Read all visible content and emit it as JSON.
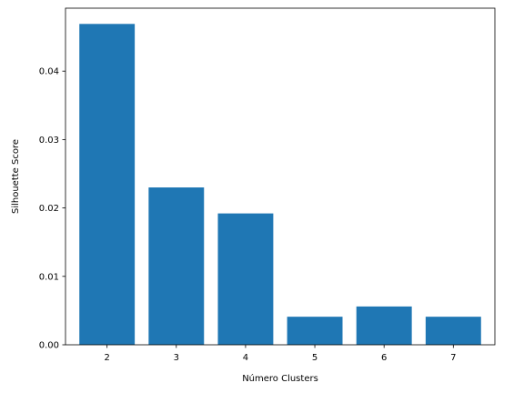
{
  "chart_data": {
    "type": "bar",
    "categories": [
      "2",
      "3",
      "4",
      "5",
      "6",
      "7"
    ],
    "values": [
      0.0469,
      0.023,
      0.0192,
      0.0041,
      0.0056,
      0.0041
    ],
    "xlabel": "Número Clusters",
    "ylabel": "Silhouette Score",
    "ylim": [
      0,
      0.0492
    ],
    "yticks": [
      "0.00",
      "0.01",
      "0.02",
      "0.03",
      "0.04"
    ],
    "bar_color": "#1f77b4",
    "grid": false
  }
}
